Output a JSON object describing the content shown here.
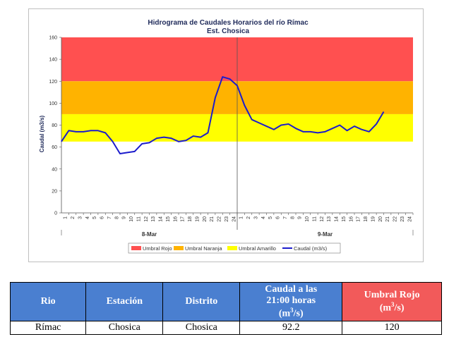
{
  "chart_data": {
    "type": "line",
    "title": "Hidrograma de Caudales Horarios del río Rímac",
    "subtitle": "Est. Chosica",
    "ylabel": "Caudal  (m3/s)",
    "ylim": [
      0,
      160
    ],
    "yticks": [
      0,
      20,
      40,
      60,
      80,
      100,
      120,
      140,
      160
    ],
    "x_tick_labels_day1": [
      "1",
      "2",
      "3",
      "4",
      "5",
      "6",
      "7",
      "8",
      "9",
      "10",
      "11",
      "12",
      "13",
      "14",
      "15",
      "16",
      "17",
      "18",
      "19",
      "20",
      "21",
      "22",
      "23",
      "24"
    ],
    "x_tick_labels_day2": [
      "1",
      "2",
      "3",
      "4",
      "5",
      "6",
      "7",
      "8",
      "9",
      "10",
      "11",
      "12",
      "13",
      "14",
      "15",
      "16",
      "17",
      "18",
      "19",
      "20",
      "21",
      "22",
      "23",
      "24"
    ],
    "day_labels": [
      "8-Mar",
      "9-Mar"
    ],
    "thresholds": [
      {
        "name": "Umbral Rojo",
        "from": 120,
        "to": 160,
        "color": "#ff5050"
      },
      {
        "name": "Umbral Naranja",
        "from": 90,
        "to": 120,
        "color": "#ffb300"
      },
      {
        "name": "Umbral Amarillo",
        "from": 65,
        "to": 90,
        "color": "#ffff00"
      }
    ],
    "series": [
      {
        "name": "Caudal (m3/s)",
        "color": "#1c1ccc",
        "values": [
          65,
          75,
          74,
          74,
          75,
          75,
          73,
          65,
          54,
          55,
          56,
          63,
          64,
          68,
          69,
          68,
          65,
          66,
          70,
          69,
          73,
          105,
          124,
          122,
          116,
          98,
          85,
          82,
          79,
          76,
          80,
          81,
          77,
          74,
          74,
          73,
          74,
          77,
          80,
          75,
          79,
          76,
          74,
          81,
          92.2
        ]
      }
    ],
    "legend": [
      "Umbral Rojo",
      "Umbral Naranja",
      "Umbral Amarillo",
      "Caudal (m3/s)"
    ],
    "legend_position": "bottom",
    "grid": false
  },
  "table": {
    "headers": [
      "Rio",
      "Estación",
      "Distrito",
      "Caudal a las 21:00 horas (m3/s)",
      "Umbral Rojo (m3/s)"
    ],
    "row": [
      "Rímac",
      "Chosica",
      "Chosica",
      "92.2",
      "120"
    ]
  }
}
